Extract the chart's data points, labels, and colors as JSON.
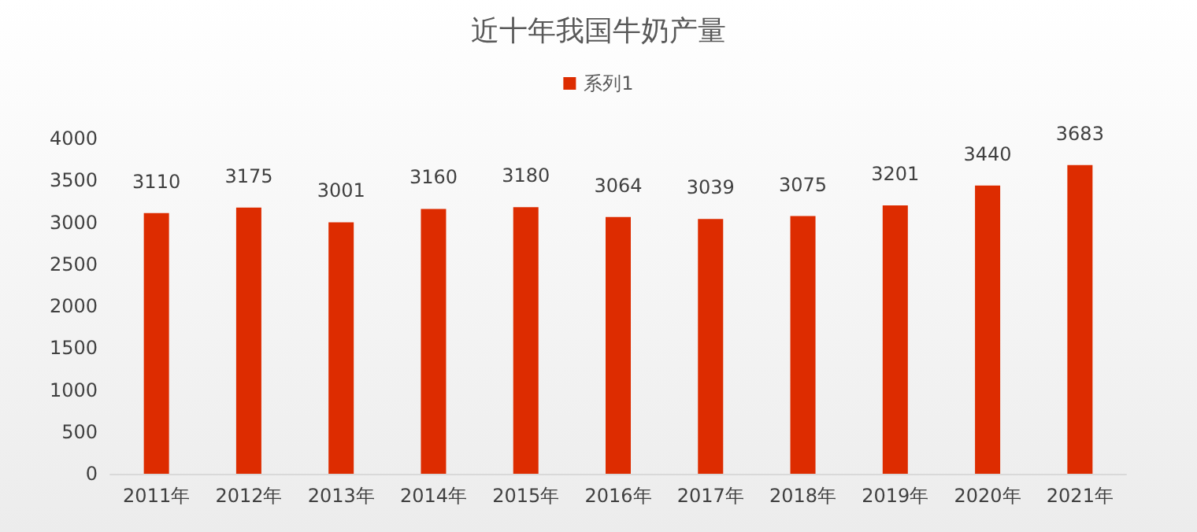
{
  "chart_data": {
    "type": "bar",
    "title": "近十年我国牛奶产量",
    "categories": [
      "2011年",
      "2012年",
      "2013年",
      "2014年",
      "2015年",
      "2016年",
      "2017年",
      "2018年",
      "2019年",
      "2020年",
      "2021年"
    ],
    "series": [
      {
        "name": "系列1",
        "color": "#dd2c00",
        "values": [
          3110,
          3175,
          3001,
          3160,
          3180,
          3064,
          3039,
          3075,
          3201,
          3440,
          3683
        ]
      }
    ],
    "ylim": [
      0,
      4000
    ],
    "yticks": [
      0,
      500,
      1000,
      1500,
      2000,
      2500,
      3000,
      3500,
      4000
    ],
    "grid": false,
    "legend": "top",
    "data_labels": true
  }
}
